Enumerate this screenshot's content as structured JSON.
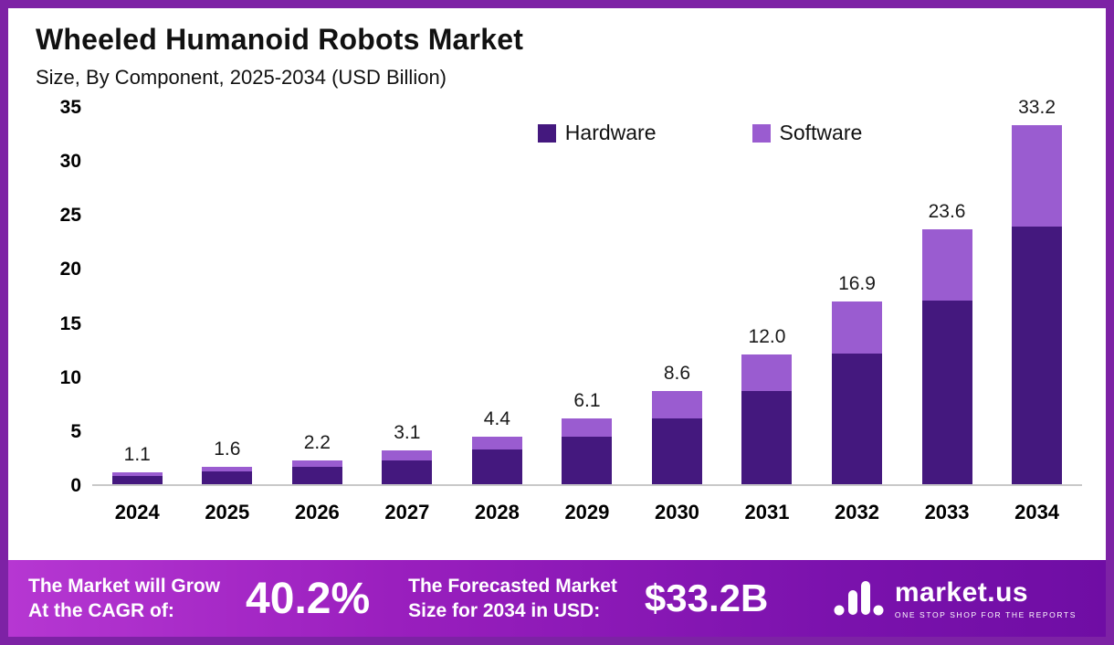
{
  "frame": {
    "border_color": "#7d22a5"
  },
  "header": {
    "title": "Wheeled Humanoid Robots Market",
    "subtitle": "Size, By Component, 2025-2034 (USD Billion)"
  },
  "chart_data": {
    "type": "bar",
    "stacked": true,
    "title": "Wheeled Humanoid Robots Market Size, By Component, 2025-2034 (USD Billion)",
    "categories": [
      "2024",
      "2025",
      "2026",
      "2027",
      "2028",
      "2029",
      "2030",
      "2031",
      "2032",
      "2033",
      "2034"
    ],
    "series": [
      {
        "name": "Hardware",
        "color": "#44187e",
        "values": [
          0.8,
          1.2,
          1.6,
          2.2,
          3.2,
          4.4,
          6.1,
          8.6,
          12.1,
          17.0,
          23.8
        ]
      },
      {
        "name": "Software",
        "color": "#9a5cd0",
        "values": [
          0.3,
          0.4,
          0.6,
          0.9,
          1.2,
          1.7,
          2.5,
          3.4,
          4.8,
          6.6,
          9.4
        ]
      }
    ],
    "totals": [
      1.1,
      1.6,
      2.2,
      3.1,
      4.4,
      6.1,
      8.6,
      12.0,
      16.9,
      23.6,
      33.2
    ],
    "total_labels": [
      "1.1",
      "1.6",
      "2.2",
      "3.1",
      "4.4",
      "6.1",
      "8.6",
      "12.0",
      "16.9",
      "23.6",
      "33.2"
    ],
    "xlabel": "",
    "ylabel": "",
    "ylim": [
      0,
      35
    ],
    "yticks": [
      0,
      5,
      10,
      15,
      20,
      25,
      30,
      35
    ],
    "grid": false,
    "legend_position": "top-center"
  },
  "footer": {
    "grow_line1": "The Market will Grow",
    "grow_line2": "At the CAGR of:",
    "cagr_value": "40.2%",
    "forecast_line1": "The Forecasted Market",
    "forecast_line2": "Size for 2034 in USD:",
    "forecast_value": "$33.2B",
    "brand": "market.us",
    "brand_tagline": "ONE STOP SHOP FOR THE REPORTS"
  }
}
